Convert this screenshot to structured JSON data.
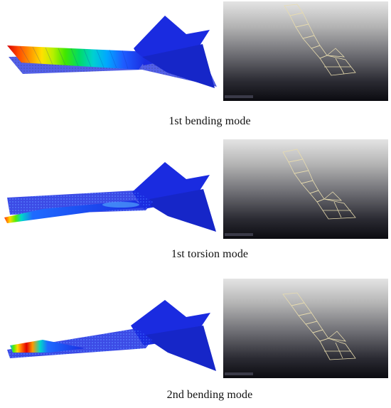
{
  "modes": [
    {
      "caption": "1st bending mode"
    },
    {
      "caption": "1st torsion mode"
    },
    {
      "caption": "2nd bending mode"
    }
  ],
  "colors": {
    "mesh_blue": "#1a2be0",
    "mesh_dark": "#0a1aa8",
    "wire_line": "#e8dcae",
    "bg_top": "#e4e4e4",
    "bg_bottom": "#0b0b10"
  },
  "contour_palette": [
    "#e00000",
    "#ff5000",
    "#ff9900",
    "#ffd800",
    "#c8f000",
    "#55ee00",
    "#00dd55",
    "#00d8c8",
    "#00b4ff",
    "#1e6bff",
    "#1a2be0"
  ]
}
